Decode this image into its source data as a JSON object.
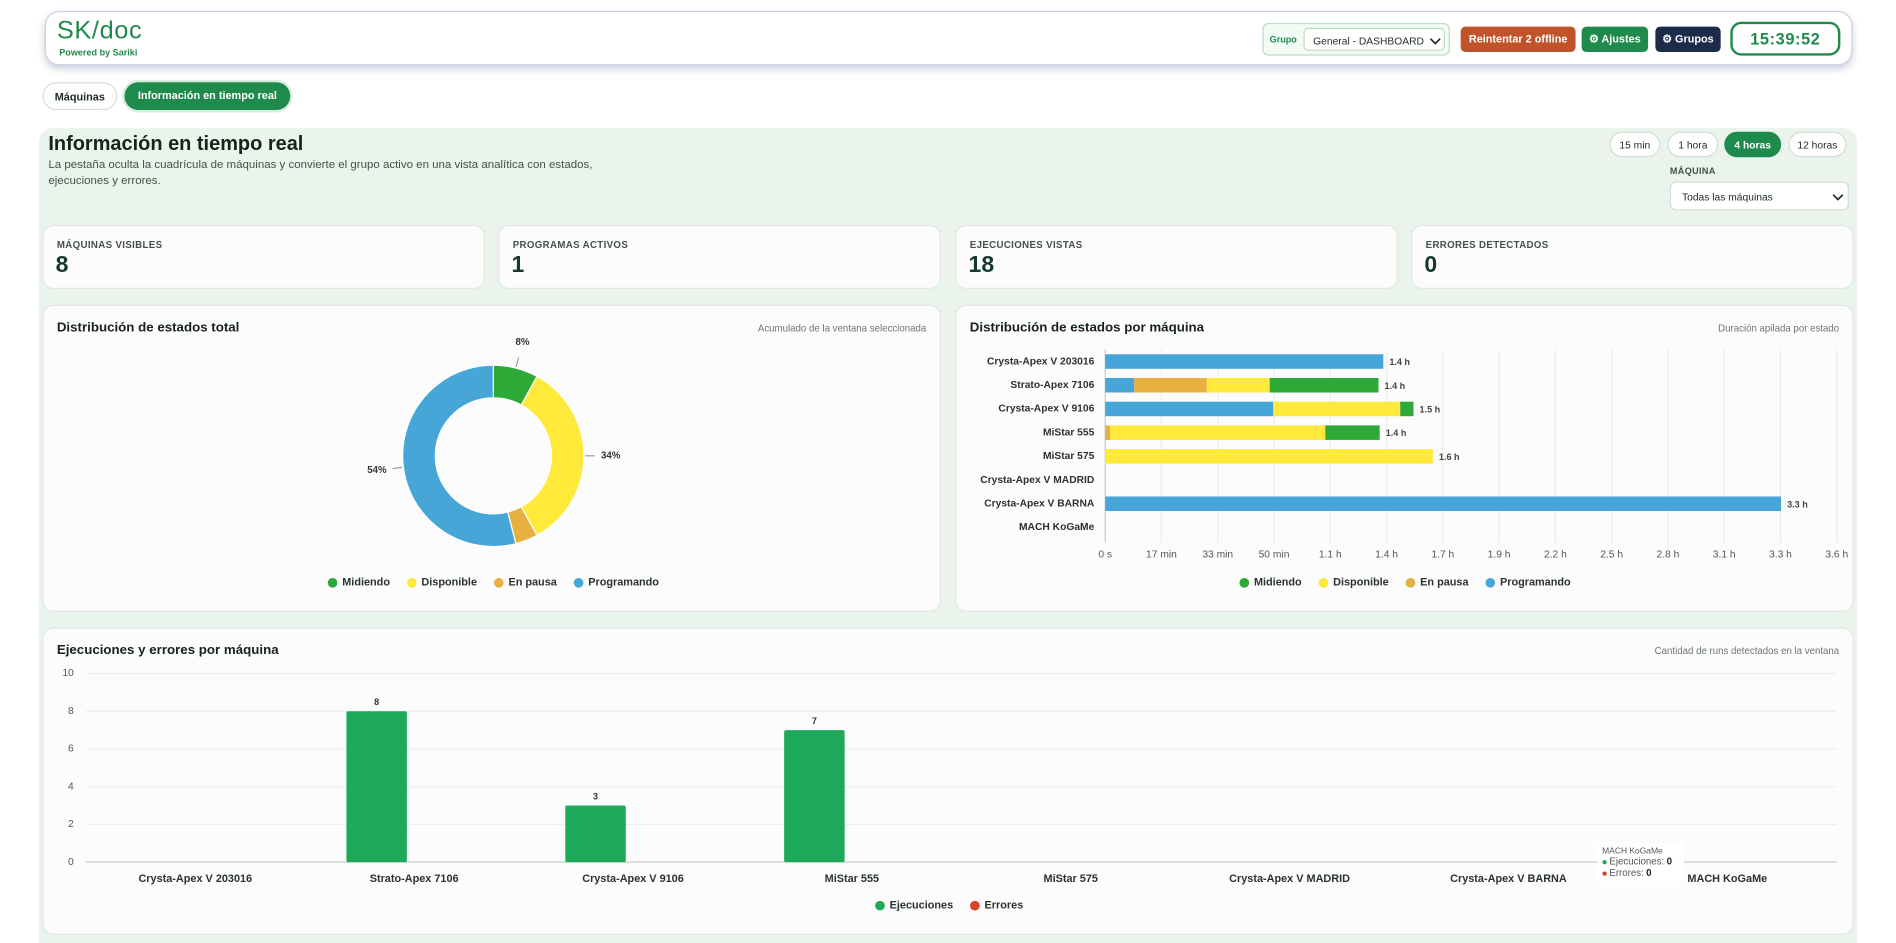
{
  "header": {
    "logo": "SK/doc",
    "tagline": "Powered by Sariki",
    "group_label": "Grupo",
    "group_select": "General - DASHBOARD",
    "buttons": [
      "Reintentar 2 offline",
      "⚙ Ajustes",
      "⚙ Grupos"
    ],
    "clock": "15:39:52"
  },
  "tabs": [
    "Máquinas",
    "Información en tiempo real"
  ],
  "section": {
    "title": "Información en tiempo real",
    "description": "La pestaña oculta la cuadrícula de máquinas y convierte el grupo activo en una vista analítica con estados, ejecuciones y errores.",
    "time_ranges": [
      "15 min",
      "1 hora",
      "4 horas",
      "12 horas"
    ],
    "active_range": 2,
    "machine_label": "MÁQUINA",
    "machine_select": "Todas las máquinas"
  },
  "kpis": [
    {
      "label": "MÁQUINAS VISIBLES",
      "value": 8
    },
    {
      "label": "PROGRAMAS ACTIVOS",
      "value": 1
    },
    {
      "label": "EJECUCIONES VISTAS",
      "value": 18
    },
    {
      "label": "ERRORES DETECTADOS",
      "value": 0
    }
  ],
  "chart_data": [
    {
      "type": "donut",
      "title": "Distribución de estados total",
      "subtitle": "Acumulado de la ventana seleccionada",
      "categories": [
        "Midiendo",
        "Disponible",
        "En pausa",
        "Programando"
      ],
      "values": [
        8,
        34,
        4,
        54
      ],
      "value_labels": [
        "8%",
        "34%",
        null,
        "54%"
      ],
      "colors": [
        "#2ea836",
        "#ffe93b",
        "#e8b040",
        "#46a6d8"
      ],
      "legend": "bottom"
    },
    {
      "type": "bar",
      "orientation": "horizontal",
      "stacked": true,
      "title": "Distribución de estados por máquina",
      "subtitle": "Duración apilada por estado",
      "categories": [
        "Crysta-Apex V 203016",
        "Strato-Apex 7106",
        "Crysta-Apex V 9106",
        "MiStar 555",
        "MiStar 575",
        "Crysta-Apex V MADRID",
        "Crysta-Apex V BARNA",
        "MACH KoGaMe"
      ],
      "series": [
        {
          "name": "Midiendo",
          "color": "#2ea836",
          "values": [
            0,
            1934,
            236,
            967,
            0,
            0,
            0,
            0
          ]
        },
        {
          "name": "Disponible",
          "color": "#ffe93b",
          "values": [
            0,
            1117,
            2256,
            3825,
            5823,
            0,
            0,
            0
          ]
        },
        {
          "name": "En pausa",
          "color": "#e8b040",
          "values": [
            0,
            1290,
            0,
            86,
            0,
            0,
            0,
            0
          ]
        },
        {
          "name": "Programando",
          "color": "#46a6d8",
          "values": [
            4942,
            516,
            2987,
            0,
            0,
            0,
            12011,
            0
          ]
        }
      ],
      "total_labels": [
        "1.4 h",
        "1.4 h",
        "1.5 h",
        "1.4 h",
        "1.6 h",
        null,
        "3.3 h",
        null
      ],
      "xlim": [
        0,
        13000
      ],
      "xticks": [
        {
          "value": 0,
          "label": "0 s"
        },
        {
          "value": 1000,
          "label": "17 min"
        },
        {
          "value": 2000,
          "label": "33 min"
        },
        {
          "value": 3000,
          "label": "50 min"
        },
        {
          "value": 4000,
          "label": "1.1 h"
        },
        {
          "value": 5000,
          "label": "1.4 h"
        },
        {
          "value": 6000,
          "label": "1.7 h"
        },
        {
          "value": 7000,
          "label": "1.9 h"
        },
        {
          "value": 8000,
          "label": "2.2 h"
        },
        {
          "value": 9000,
          "label": "2.5 h"
        },
        {
          "value": 10000,
          "label": "2.8 h"
        },
        {
          "value": 11000,
          "label": "3.1 h"
        },
        {
          "value": 12000,
          "label": "3.3 h"
        },
        {
          "value": 13000,
          "label": "3.6 h"
        }
      ],
      "grid": true,
      "legend": "bottom"
    },
    {
      "type": "bar",
      "title": "Ejecuciones y errores por máquina",
      "subtitle": "Cantidad de runs detectados en la ventana",
      "categories": [
        "Crysta-Apex V 203016",
        "Strato-Apex 7106",
        "Crysta-Apex V 9106",
        "MiStar 555",
        "MiStar 575",
        "Crysta-Apex V MADRID",
        "Crysta-Apex V BARNA",
        "MACH KoGaMe"
      ],
      "series": [
        {
          "name": "Ejecuciones",
          "color": "#1ea85a",
          "values": [
            0,
            8,
            3,
            7,
            0,
            0,
            0,
            0
          ]
        },
        {
          "name": "Errores",
          "color": "#d8432a",
          "values": [
            0,
            0,
            0,
            0,
            0,
            0,
            0,
            0
          ]
        }
      ],
      "ylim": [
        0,
        10
      ],
      "yticks": [
        0,
        2,
        4,
        6,
        8,
        10
      ],
      "grid": true,
      "legend": "bottom",
      "tooltip": {
        "title": "MACH KoGaMe",
        "items": [
          {
            "label": "Ejecuciones:",
            "value": 0
          },
          {
            "label": "Errores:",
            "value": 0
          }
        ]
      }
    }
  ]
}
